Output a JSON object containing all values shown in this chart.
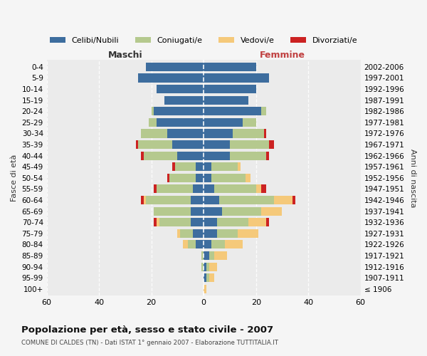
{
  "age_groups": [
    "100+",
    "95-99",
    "90-94",
    "85-89",
    "80-84",
    "75-79",
    "70-74",
    "65-69",
    "60-64",
    "55-59",
    "50-54",
    "45-49",
    "40-44",
    "35-39",
    "30-34",
    "25-29",
    "20-24",
    "15-19",
    "10-14",
    "5-9",
    "0-4"
  ],
  "birth_years": [
    "≤ 1906",
    "1907-1911",
    "1912-1916",
    "1917-1921",
    "1922-1926",
    "1927-1931",
    "1932-1936",
    "1937-1941",
    "1942-1946",
    "1947-1951",
    "1952-1956",
    "1957-1961",
    "1962-1966",
    "1967-1971",
    "1972-1976",
    "1977-1981",
    "1982-1986",
    "1987-1991",
    "1992-1996",
    "1997-2001",
    "2002-2006"
  ],
  "males_celibe": [
    0,
    0,
    0,
    0,
    3,
    4,
    5,
    5,
    5,
    4,
    3,
    3,
    10,
    12,
    14,
    18,
    19,
    15,
    18,
    25,
    22
  ],
  "males_coniugato": [
    0,
    0,
    1,
    1,
    3,
    5,
    12,
    14,
    17,
    14,
    10,
    8,
    13,
    13,
    10,
    3,
    1,
    0,
    0,
    0,
    0
  ],
  "males_vedovo": [
    0,
    0,
    0,
    0,
    2,
    1,
    1,
    0,
    1,
    0,
    0,
    0,
    0,
    0,
    0,
    0,
    0,
    0,
    0,
    0,
    0
  ],
  "males_divorziato": [
    0,
    0,
    0,
    0,
    0,
    0,
    1,
    0,
    1,
    1,
    1,
    1,
    1,
    1,
    0,
    0,
    0,
    0,
    0,
    0,
    0
  ],
  "females_celibe": [
    0,
    1,
    1,
    2,
    3,
    5,
    5,
    7,
    6,
    4,
    3,
    3,
    10,
    10,
    11,
    15,
    22,
    17,
    20,
    25,
    20
  ],
  "females_coniugato": [
    0,
    1,
    1,
    2,
    5,
    8,
    12,
    15,
    21,
    16,
    13,
    10,
    14,
    15,
    12,
    5,
    2,
    0,
    0,
    0,
    0
  ],
  "females_vedovo": [
    1,
    2,
    3,
    5,
    7,
    8,
    7,
    8,
    7,
    2,
    2,
    1,
    0,
    0,
    0,
    0,
    0,
    0,
    0,
    0,
    0
  ],
  "females_divorziato": [
    0,
    0,
    0,
    0,
    0,
    0,
    1,
    0,
    1,
    2,
    0,
    0,
    1,
    2,
    1,
    0,
    0,
    0,
    0,
    0,
    0
  ],
  "color_celibe": "#3d6d9e",
  "color_coniugato": "#b5c98e",
  "color_vedovo": "#f5c97a",
  "color_divorziato": "#cc2222",
  "title": "Popolazione per età, sesso e stato civile - 2007",
  "subtitle": "COMUNE DI CALDES (TN) - Dati ISTAT 1° gennaio 2007 - Elaborazione TUTTITALIA.IT",
  "xlabel_left": "Maschi",
  "xlabel_right": "Femmine",
  "ylabel_left": "Fasce di età",
  "ylabel_right": "Anni di nascita",
  "xlim": 60,
  "bg_color": "#f5f5f5",
  "plot_bg": "#ebebeb"
}
